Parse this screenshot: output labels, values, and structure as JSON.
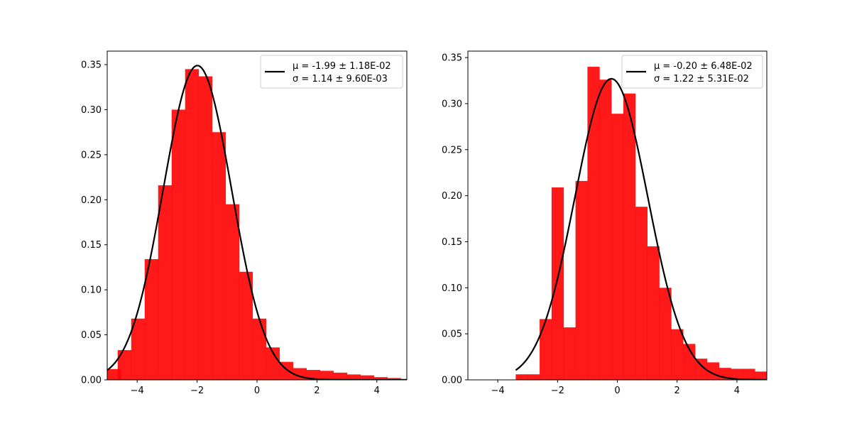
{
  "chart_data": [
    {
      "type": "bar",
      "panel": "left",
      "bar_color": "#ff0000",
      "bar_opacity": 0.9,
      "fit_color": "#000000",
      "xlim": [
        -5,
        5
      ],
      "ylim": [
        0,
        0.365
      ],
      "xticks": [
        -4,
        -2,
        0,
        2,
        4
      ],
      "yticks": [
        0.0,
        0.05,
        0.1,
        0.15,
        0.2,
        0.25,
        0.3,
        0.35
      ],
      "ytick_labels": [
        "0.00",
        "0.05",
        "0.10",
        "0.15",
        "0.20",
        "0.25",
        "0.30",
        "0.35"
      ],
      "xtick_labels": [
        "−4",
        "−2",
        "0",
        "2",
        "4"
      ],
      "bin_width": 0.45,
      "bins": [
        {
          "x0": -5.0,
          "y": 0.012
        },
        {
          "x0": -4.65,
          "y": 0.033
        },
        {
          "x0": -4.2,
          "y": 0.068
        },
        {
          "x0": -3.75,
          "y": 0.134
        },
        {
          "x0": -3.3,
          "y": 0.216
        },
        {
          "x0": -2.85,
          "y": 0.3
        },
        {
          "x0": -2.4,
          "y": 0.345
        },
        {
          "x0": -1.95,
          "y": 0.337
        },
        {
          "x0": -1.5,
          "y": 0.275
        },
        {
          "x0": -1.05,
          "y": 0.195
        },
        {
          "x0": -0.6,
          "y": 0.12
        },
        {
          "x0": -0.15,
          "y": 0.068
        },
        {
          "x0": 0.3,
          "y": 0.036
        },
        {
          "x0": 0.75,
          "y": 0.02
        },
        {
          "x0": 1.2,
          "y": 0.013
        },
        {
          "x0": 1.65,
          "y": 0.011
        },
        {
          "x0": 2.1,
          "y": 0.01
        },
        {
          "x0": 2.55,
          "y": 0.008
        },
        {
          "x0": 3.0,
          "y": 0.006
        },
        {
          "x0": 3.45,
          "y": 0.005
        },
        {
          "x0": 3.9,
          "y": 0.003
        },
        {
          "x0": 4.35,
          "y": 0.002
        },
        {
          "x0": 4.8,
          "y": 0.001
        }
      ],
      "fit": {
        "mu": -1.99,
        "sigma": 1.14,
        "amplitude": 0.349,
        "x_range": [
          -5,
          5
        ]
      },
      "legend": {
        "placement": "upper right",
        "line1": "μ = -1.99 ± 1.18E-02",
        "line2": "σ = 1.14 ± 9.60E-03"
      }
    },
    {
      "type": "bar",
      "panel": "right",
      "bar_color": "#ff0000",
      "bar_opacity": 0.9,
      "fit_color": "#000000",
      "xlim": [
        -5,
        5
      ],
      "ylim": [
        0,
        0.357
      ],
      "xticks": [
        -4,
        -2,
        0,
        2,
        4
      ],
      "yticks": [
        0.0,
        0.05,
        0.1,
        0.15,
        0.2,
        0.25,
        0.3,
        0.35
      ],
      "ytick_labels": [
        "0.00",
        "0.05",
        "0.10",
        "0.15",
        "0.20",
        "0.25",
        "0.30",
        "0.35"
      ],
      "xtick_labels": [
        "−4",
        "−2",
        "0",
        "2",
        "4"
      ],
      "bin_width": 0.4,
      "bins": [
        {
          "x0": -3.4,
          "y": 0.006
        },
        {
          "x0": -3.0,
          "y": 0.006
        },
        {
          "x0": -2.6,
          "y": 0.066
        },
        {
          "x0": -2.2,
          "y": 0.209
        },
        {
          "x0": -1.8,
          "y": 0.057
        },
        {
          "x0": -1.4,
          "y": 0.216
        },
        {
          "x0": -1.0,
          "y": 0.34
        },
        {
          "x0": -0.6,
          "y": 0.326
        },
        {
          "x0": -0.2,
          "y": 0.289
        },
        {
          "x0": 0.2,
          "y": 0.311
        },
        {
          "x0": 0.6,
          "y": 0.188
        },
        {
          "x0": 1.0,
          "y": 0.145
        },
        {
          "x0": 1.4,
          "y": 0.1
        },
        {
          "x0": 1.8,
          "y": 0.055
        },
        {
          "x0": 2.2,
          "y": 0.039
        },
        {
          "x0": 2.6,
          "y": 0.023
        },
        {
          "x0": 3.0,
          "y": 0.019
        },
        {
          "x0": 3.4,
          "y": 0.013
        },
        {
          "x0": 3.8,
          "y": 0.012
        },
        {
          "x0": 4.2,
          "y": 0.012
        },
        {
          "x0": 4.6,
          "y": 0.009
        }
      ],
      "fit": {
        "mu": -0.2,
        "sigma": 1.22,
        "amplitude": 0.327,
        "x_range": [
          -3.4,
          5
        ]
      },
      "legend": {
        "placement": "upper right",
        "line1": "μ = -0.20 ± 6.48E-02",
        "line2": "σ = 1.22 ± 5.31E-02"
      }
    }
  ]
}
